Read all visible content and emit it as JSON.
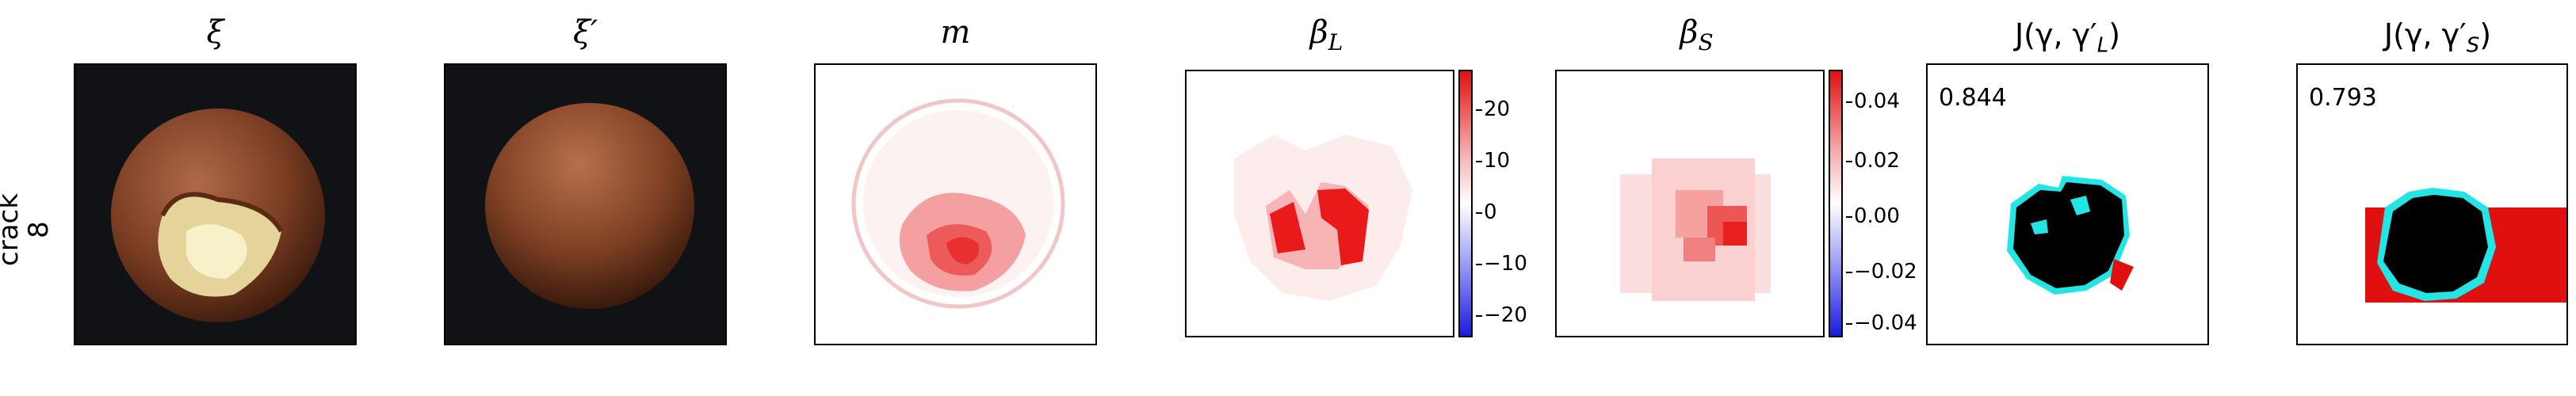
{
  "row": {
    "label_line1": "crack",
    "label_line2": "8"
  },
  "panels": [
    {
      "title": "ξ"
    },
    {
      "title": "ξ′"
    },
    {
      "title": "m"
    },
    {
      "title": "β",
      "sub": "L"
    },
    {
      "title": "β",
      "sub": "S"
    },
    {
      "title": "J(γ, γ′",
      "sub": "L",
      "close": ")",
      "score": "0.844"
    },
    {
      "title": "J(γ, γ′",
      "sub": "S",
      "close": ")",
      "score": "0.793"
    }
  ],
  "colorbar_L": {
    "ticks": [
      "20",
      "10",
      "0",
      "−10",
      "−20"
    ]
  },
  "colorbar_S": {
    "ticks": [
      "0.04",
      "0.02",
      "0.00",
      "−0.02",
      "−0.04"
    ]
  },
  "colors": {
    "positive": "#e01010",
    "negative": "#1a1ae0",
    "image_bg": "#111216",
    "hazelnut": "#8a4a2a",
    "mask": "#000000",
    "cyan": "#22e6e6"
  }
}
